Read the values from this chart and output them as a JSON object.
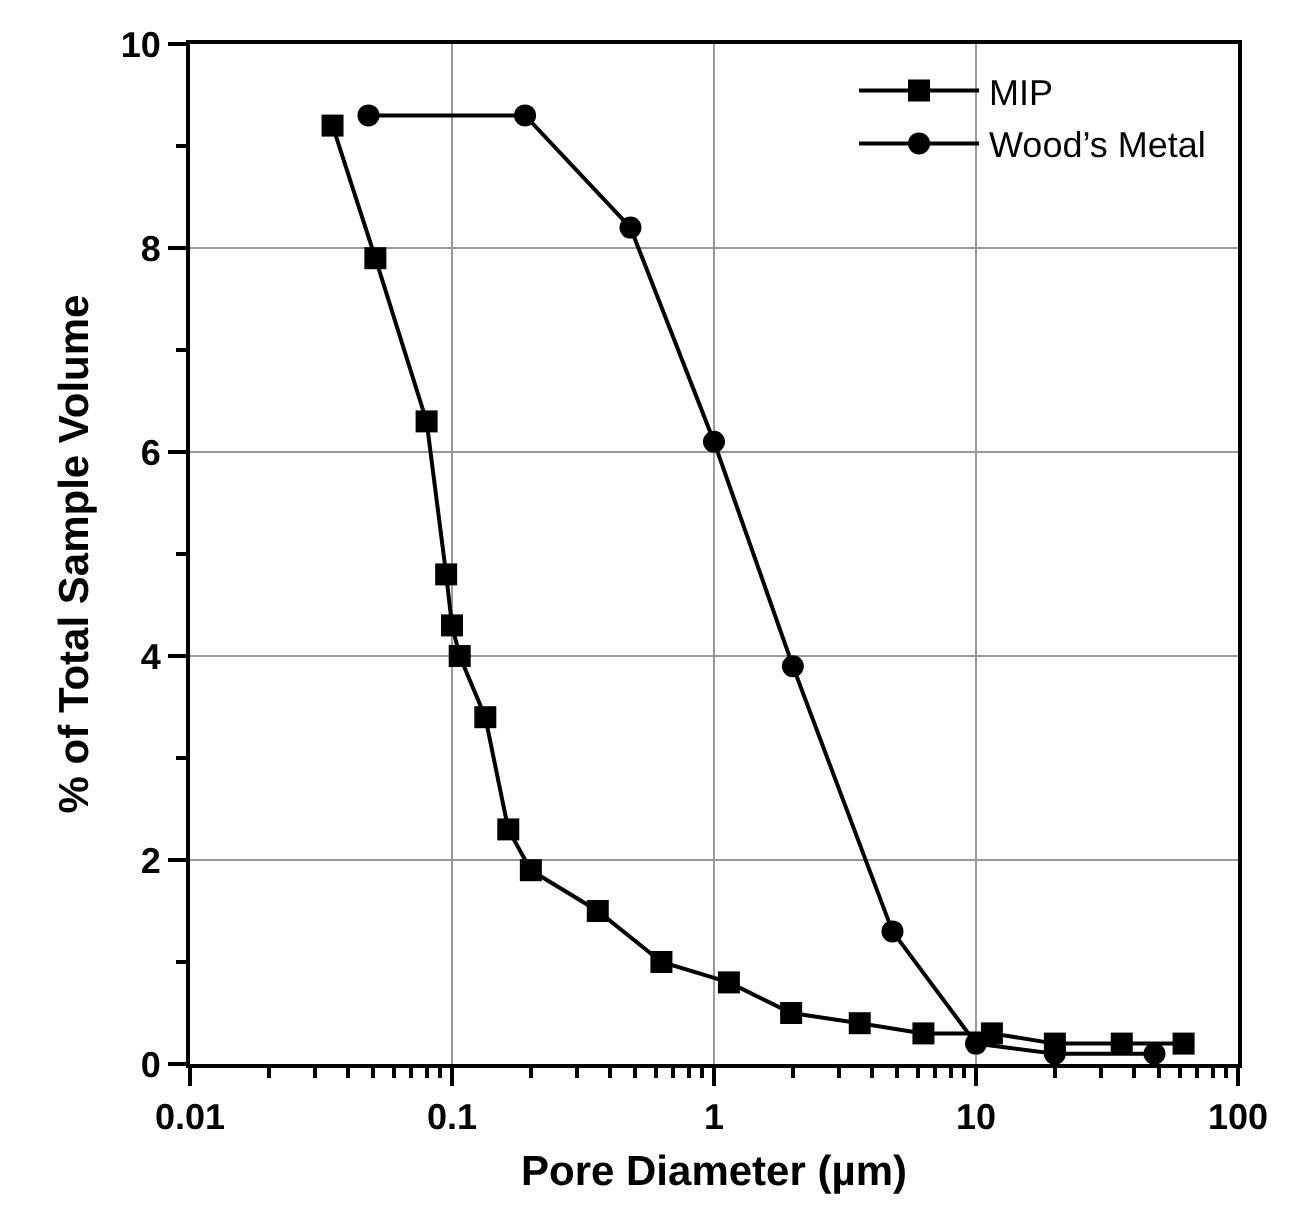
{
  "chart_data": {
    "type": "line",
    "xlabel": "Pore Diameter (µm)",
    "ylabel": "% of Total Sample Volume",
    "log": "x",
    "xlim": [
      0.01,
      100
    ],
    "xticks": [
      0.01,
      {
        "value": 0.02,
        "label": null
      },
      {
        "value": 0.03,
        "label": null
      },
      {
        "value": 0.04,
        "label": null
      },
      {
        "value": 0.05,
        "label": null
      },
      {
        "value": 0.06,
        "label": null
      },
      {
        "value": 0.07,
        "label": null
      },
      {
        "value": 0.08,
        "label": null
      },
      {
        "value": 0.09,
        "label": null
      },
      0.1,
      {
        "value": 0.2,
        "label": null
      },
      {
        "value": 0.3,
        "label": null
      },
      {
        "value": 0.4,
        "label": null
      },
      {
        "value": 0.5,
        "label": null
      },
      {
        "value": 0.6,
        "label": null
      },
      {
        "value": 0.7,
        "label": null
      },
      {
        "value": 0.8,
        "label": null
      },
      {
        "value": 0.9,
        "label": null
      },
      1,
      {
        "value": 2,
        "label": null
      },
      {
        "value": 3,
        "label": null
      },
      {
        "value": 4,
        "label": null
      },
      {
        "value": 5,
        "label": null
      },
      {
        "value": 6,
        "label": null
      },
      {
        "value": 7,
        "label": null
      },
      {
        "value": 8,
        "label": null
      },
      {
        "value": 9,
        "label": null
      },
      10,
      {
        "value": 20,
        "label": null
      },
      {
        "value": 30,
        "label": null
      },
      {
        "value": 40,
        "label": null
      },
      {
        "value": 50,
        "label": null
      },
      {
        "value": 60,
        "label": null
      },
      {
        "value": 70,
        "label": null
      },
      {
        "value": 80,
        "label": null
      },
      {
        "value": 90,
        "label": null
      },
      100
    ],
    "ylim": [
      0,
      10
    ],
    "yticks": [
      0,
      {
        "value": 1,
        "label": null
      },
      2,
      {
        "value": 3,
        "label": null
      },
      4,
      {
        "value": 5,
        "label": null
      },
      6,
      {
        "value": 7,
        "label": null
      },
      8,
      {
        "value": 9,
        "label": null
      },
      10
    ],
    "grid": true,
    "legend": "top right",
    "line_style": "solid",
    "series": [
      {
        "name": "MIP",
        "color": "#000000",
        "marker": "square",
        "x": [
          0.035,
          0.051,
          0.08,
          0.095,
          0.1,
          0.107,
          0.134,
          0.164,
          0.2,
          0.36,
          0.63,
          1.14,
          1.97,
          3.6,
          6.3,
          11.5,
          20,
          36,
          62
        ],
        "values": [
          9.2,
          7.9,
          6.3,
          4.8,
          4.3,
          4.0,
          3.4,
          2.3,
          1.9,
          1.5,
          1.0,
          0.8,
          0.5,
          0.4,
          0.3,
          0.3,
          0.2,
          0.2,
          0.2
        ]
      },
      {
        "name": "Wood’s Metal",
        "color": "#000000",
        "marker": "circle",
        "x": [
          0.048,
          0.19,
          0.48,
          1,
          2,
          4.8,
          10,
          20,
          48
        ],
        "values": [
          9.3,
          9.3,
          8.2,
          6.1,
          3.9,
          1.3,
          0.2,
          0.1,
          0.1
        ]
      }
    ]
  }
}
